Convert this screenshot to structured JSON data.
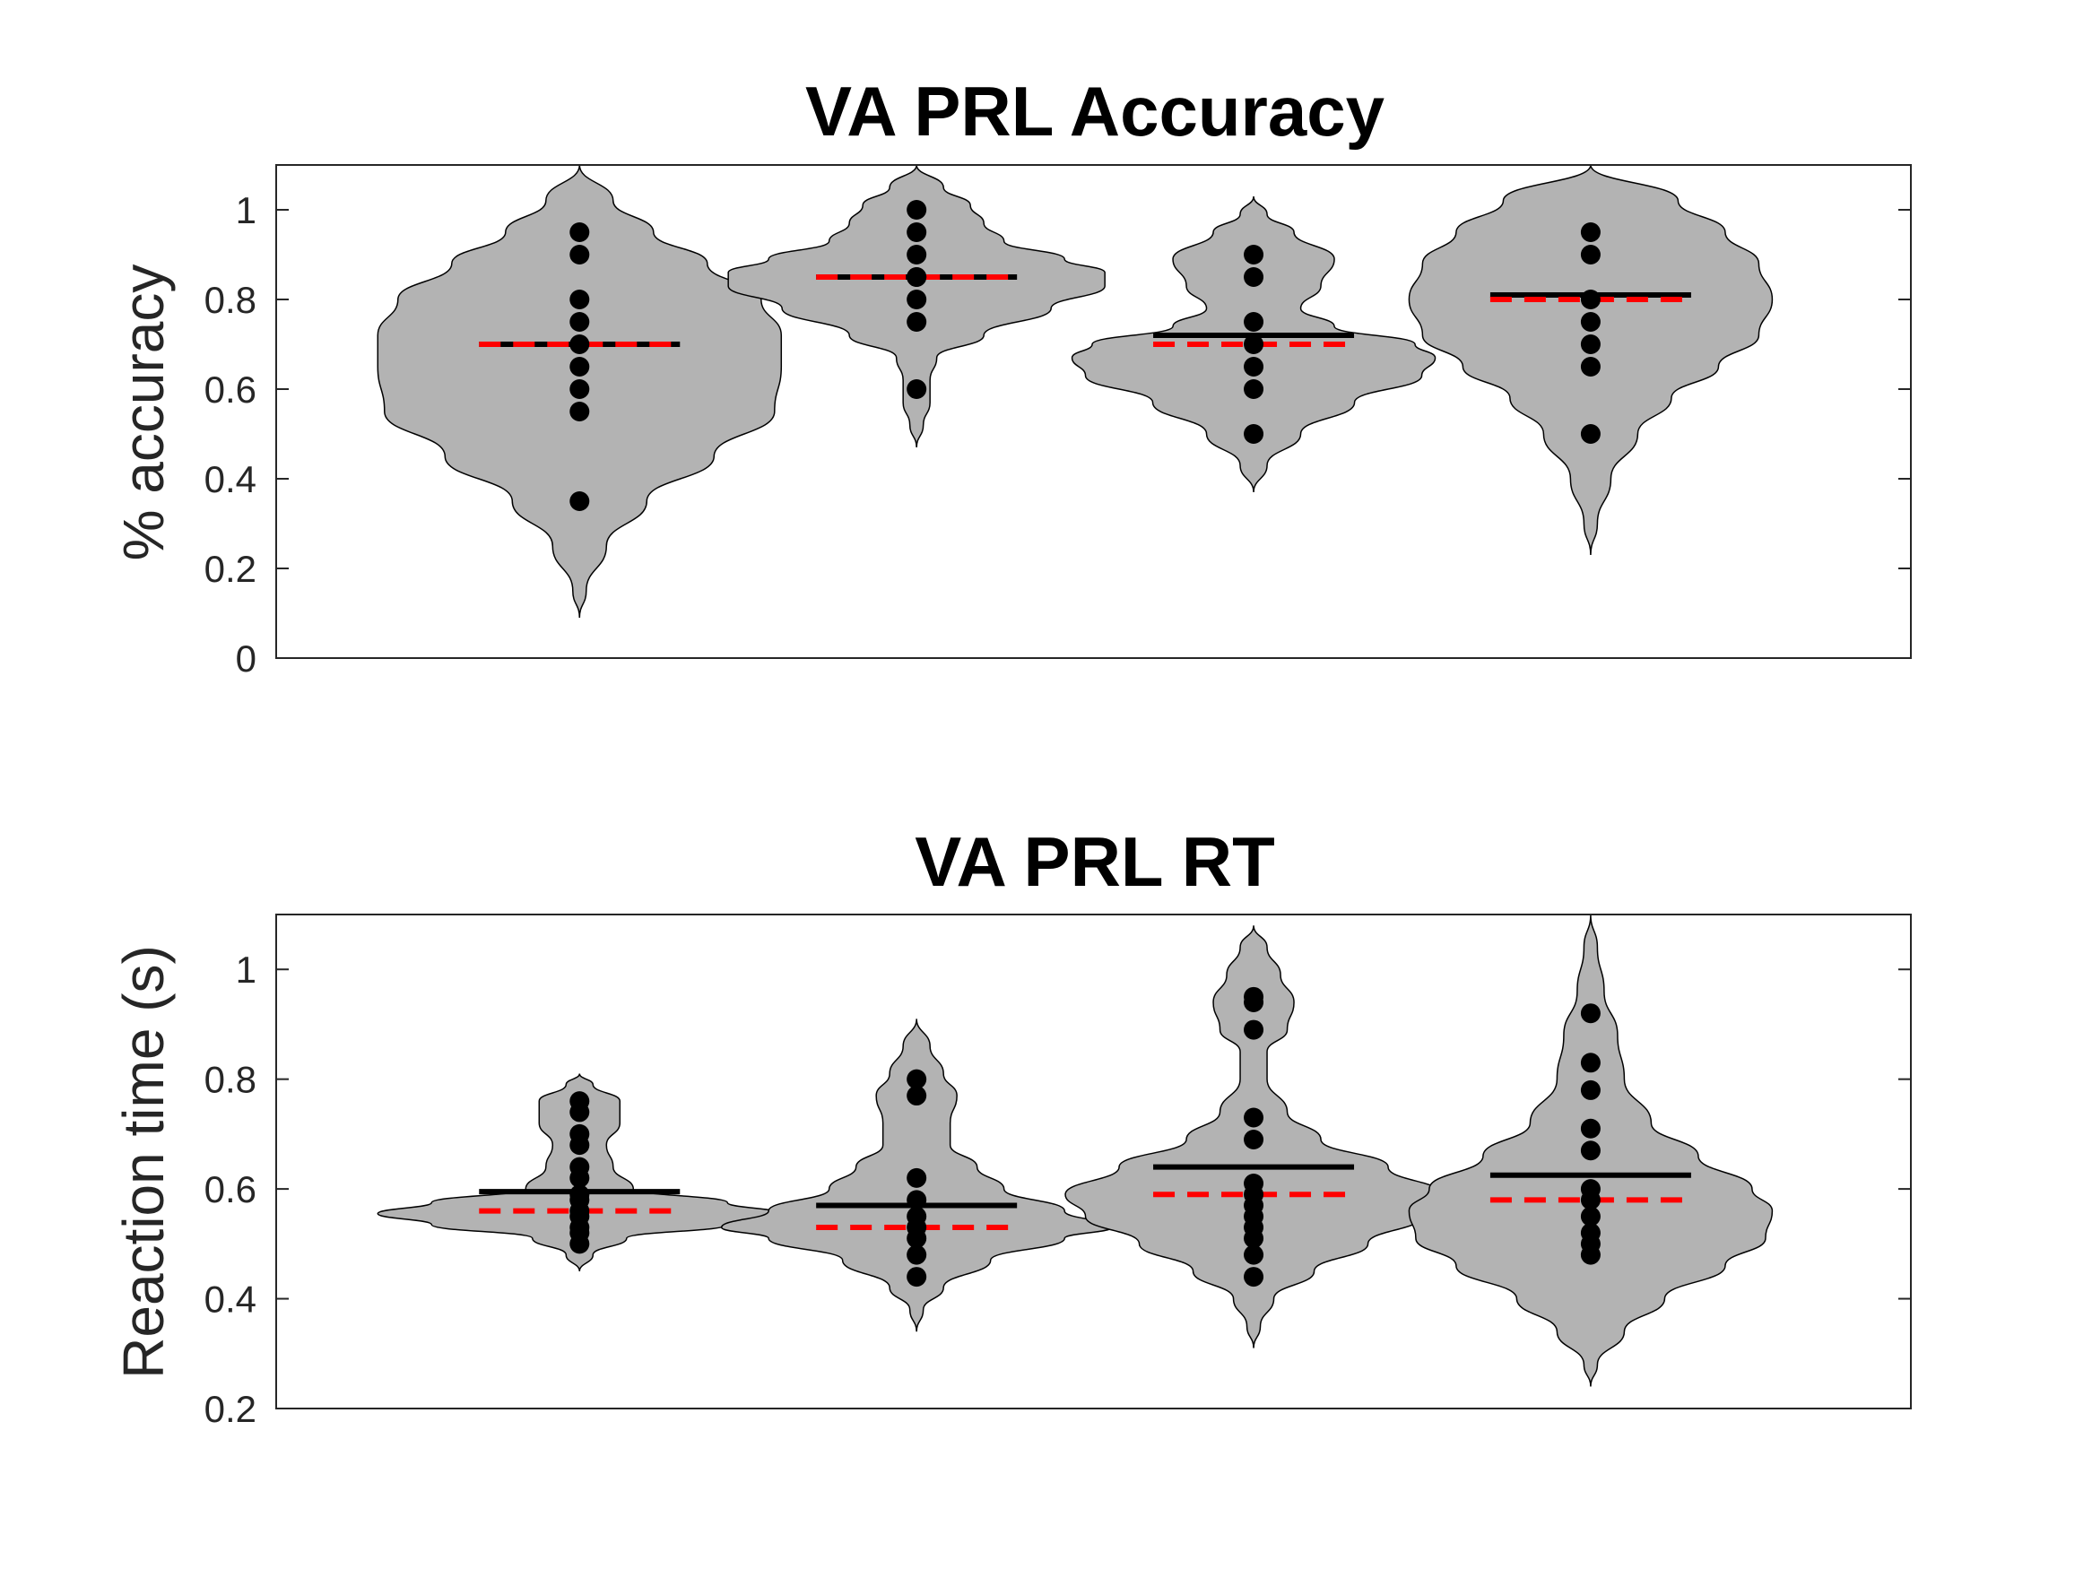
{
  "colors": {
    "violin_fill": "#b3b3b3",
    "violin_edge": "#000000",
    "points": "#000000",
    "mean_line": "#000000",
    "median_line": "#ff0000",
    "axes": "#262626"
  },
  "chart_data": [
    {
      "type": "violin",
      "title": "VA PRL Accuracy",
      "xlabel": "",
      "ylabel": "% accuracy",
      "ylim": [
        0,
        1.1
      ],
      "yticks": [
        0,
        0.2,
        0.4,
        0.6,
        0.8,
        1
      ],
      "ytick_labels": [
        "0",
        "0.2",
        "0.4",
        "0.6",
        "0.8",
        "1"
      ],
      "x_positions": [
        1,
        2,
        3,
        4
      ],
      "xlim": [
        0.1,
        4.95
      ],
      "grid": false,
      "mean_line_style": "solid black",
      "median_line_style": "dashed red",
      "groups": [
        {
          "points": [
            0.95,
            0.9,
            0.8,
            0.75,
            0.7,
            0.65,
            0.6,
            0.55,
            0.35
          ],
          "mean": 0.7,
          "median": 0.7,
          "range": [
            0.09,
            1.1
          ],
          "density": [
            [
              0.09,
              0.0
            ],
            [
              0.15,
              0.01
            ],
            [
              0.25,
              0.04
            ],
            [
              0.35,
              0.1
            ],
            [
              0.45,
              0.2
            ],
            [
              0.55,
              0.29
            ],
            [
              0.65,
              0.3
            ],
            [
              0.72,
              0.3
            ],
            [
              0.8,
              0.27
            ],
            [
              0.88,
              0.19
            ],
            [
              0.95,
              0.11
            ],
            [
              1.02,
              0.05
            ],
            [
              1.1,
              0.0
            ]
          ]
        },
        {
          "points": [
            1.0,
            0.95,
            0.9,
            0.85,
            0.85,
            0.8,
            0.75,
            0.6
          ],
          "mean": 0.85,
          "median": 0.85,
          "range": [
            0.47,
            1.1
          ],
          "density": [
            [
              0.47,
              0.0
            ],
            [
              0.52,
              0.01
            ],
            [
              0.57,
              0.02
            ],
            [
              0.62,
              0.02
            ],
            [
              0.67,
              0.03
            ],
            [
              0.72,
              0.1
            ],
            [
              0.78,
              0.2
            ],
            [
              0.83,
              0.28
            ],
            [
              0.86,
              0.28
            ],
            [
              0.89,
              0.22
            ],
            [
              0.93,
              0.13
            ],
            [
              0.97,
              0.1
            ],
            [
              1.01,
              0.08
            ],
            [
              1.05,
              0.04
            ],
            [
              1.1,
              0.0
            ]
          ]
        },
        {
          "points": [
            0.9,
            0.85,
            0.75,
            0.7,
            0.65,
            0.6,
            0.5
          ],
          "mean": 0.72,
          "median": 0.7,
          "range": [
            0.37,
            1.03
          ],
          "density": [
            [
              0.37,
              0.0
            ],
            [
              0.43,
              0.02
            ],
            [
              0.5,
              0.07
            ],
            [
              0.57,
              0.15
            ],
            [
              0.63,
              0.25
            ],
            [
              0.67,
              0.27
            ],
            [
              0.7,
              0.24
            ],
            [
              0.74,
              0.12
            ],
            [
              0.78,
              0.07
            ],
            [
              0.83,
              0.1
            ],
            [
              0.89,
              0.12
            ],
            [
              0.95,
              0.06
            ],
            [
              0.99,
              0.02
            ],
            [
              1.03,
              0.0
            ]
          ]
        },
        {
          "points": [
            0.95,
            0.9,
            0.8,
            0.75,
            0.7,
            0.65,
            0.5
          ],
          "mean": 0.81,
          "median": 0.8,
          "range": [
            0.23,
            1.1
          ],
          "density": [
            [
              0.23,
              0.0
            ],
            [
              0.3,
              0.01
            ],
            [
              0.4,
              0.03
            ],
            [
              0.5,
              0.07
            ],
            [
              0.58,
              0.12
            ],
            [
              0.65,
              0.19
            ],
            [
              0.72,
              0.25
            ],
            [
              0.8,
              0.27
            ],
            [
              0.88,
              0.25
            ],
            [
              0.95,
              0.2
            ],
            [
              1.02,
              0.13
            ],
            [
              1.1,
              0.0
            ]
          ]
        }
      ]
    },
    {
      "type": "violin",
      "title": "VA PRL RT",
      "xlabel": "",
      "ylabel": "Reaction time (s)",
      "ylim": [
        0.2,
        1.1
      ],
      "yticks": [
        0.2,
        0.4,
        0.6,
        0.8,
        1
      ],
      "ytick_labels": [
        "0.2",
        "0.4",
        "0.6",
        "0.8",
        "1"
      ],
      "x_positions": [
        1,
        2,
        3,
        4
      ],
      "xlim": [
        0.1,
        4.95
      ],
      "grid": false,
      "mean_line_style": "solid black",
      "median_line_style": "dashed red",
      "groups": [
        {
          "points": [
            0.76,
            0.74,
            0.7,
            0.68,
            0.64,
            0.62,
            0.59,
            0.58,
            0.56,
            0.55,
            0.53,
            0.52,
            0.5
          ],
          "mean": 0.595,
          "median": 0.56,
          "range": [
            0.45,
            0.81
          ],
          "density": [
            [
              0.45,
              0.0
            ],
            [
              0.48,
              0.02
            ],
            [
              0.51,
              0.07
            ],
            [
              0.535,
              0.22
            ],
            [
              0.555,
              0.3
            ],
            [
              0.575,
              0.22
            ],
            [
              0.6,
              0.08
            ],
            [
              0.64,
              0.05
            ],
            [
              0.68,
              0.04
            ],
            [
              0.72,
              0.06
            ],
            [
              0.76,
              0.06
            ],
            [
              0.79,
              0.02
            ],
            [
              0.81,
              0.0
            ]
          ]
        },
        {
          "points": [
            0.8,
            0.77,
            0.62,
            0.58,
            0.55,
            0.53,
            0.51,
            0.48,
            0.44
          ],
          "mean": 0.57,
          "median": 0.53,
          "range": [
            0.34,
            0.91
          ],
          "density": [
            [
              0.34,
              0.0
            ],
            [
              0.38,
              0.01
            ],
            [
              0.42,
              0.04
            ],
            [
              0.47,
              0.11
            ],
            [
              0.51,
              0.22
            ],
            [
              0.53,
              0.29
            ],
            [
              0.56,
              0.22
            ],
            [
              0.6,
              0.13
            ],
            [
              0.64,
              0.09
            ],
            [
              0.68,
              0.05
            ],
            [
              0.72,
              0.05
            ],
            [
              0.77,
              0.06
            ],
            [
              0.81,
              0.04
            ],
            [
              0.86,
              0.02
            ],
            [
              0.91,
              0.0
            ]
          ]
        },
        {
          "points": [
            0.95,
            0.94,
            0.89,
            0.73,
            0.69,
            0.61,
            0.59,
            0.57,
            0.55,
            0.53,
            0.51,
            0.48,
            0.44
          ],
          "mean": 0.64,
          "median": 0.59,
          "range": [
            0.31,
            1.08
          ],
          "density": [
            [
              0.31,
              0.0
            ],
            [
              0.35,
              0.01
            ],
            [
              0.4,
              0.03
            ],
            [
              0.45,
              0.09
            ],
            [
              0.5,
              0.17
            ],
            [
              0.55,
              0.25
            ],
            [
              0.59,
              0.28
            ],
            [
              0.64,
              0.2
            ],
            [
              0.69,
              0.1
            ],
            [
              0.74,
              0.05
            ],
            [
              0.8,
              0.02
            ],
            [
              0.85,
              0.02
            ],
            [
              0.89,
              0.05
            ],
            [
              0.94,
              0.06
            ],
            [
              0.99,
              0.04
            ],
            [
              1.04,
              0.02
            ],
            [
              1.08,
              0.0
            ]
          ]
        },
        {
          "points": [
            0.92,
            0.83,
            0.78,
            0.71,
            0.67,
            0.6,
            0.58,
            0.55,
            0.52,
            0.5,
            0.48
          ],
          "mean": 0.625,
          "median": 0.58,
          "range": [
            0.24,
            1.1
          ],
          "density": [
            [
              0.24,
              0.0
            ],
            [
              0.28,
              0.01
            ],
            [
              0.34,
              0.05
            ],
            [
              0.4,
              0.11
            ],
            [
              0.46,
              0.2
            ],
            [
              0.51,
              0.26
            ],
            [
              0.56,
              0.27
            ],
            [
              0.6,
              0.24
            ],
            [
              0.66,
              0.16
            ],
            [
              0.72,
              0.09
            ],
            [
              0.8,
              0.05
            ],
            [
              0.88,
              0.04
            ],
            [
              0.96,
              0.02
            ],
            [
              1.04,
              0.01
            ],
            [
              1.1,
              0.0
            ]
          ]
        }
      ]
    }
  ]
}
